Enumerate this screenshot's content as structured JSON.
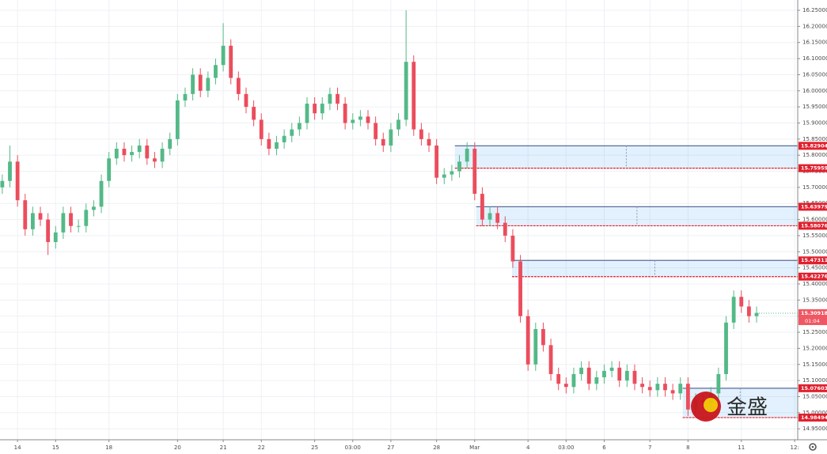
{
  "chart_data": {
    "type": "candlestick",
    "up_color": "#53b987",
    "down_color": "#eb4d5c",
    "grid": true,
    "open": [
      15.7,
      15.72,
      15.78,
      15.66,
      15.57,
      15.62,
      15.6,
      15.53,
      15.56,
      15.62,
      15.58,
      15.58,
      15.63,
      15.64,
      15.72,
      15.79,
      15.82,
      15.8,
      15.81,
      15.83,
      15.79,
      15.78,
      15.82,
      15.85,
      15.97,
      15.99,
      16.05,
      16.0,
      16.04,
      16.08,
      16.14,
      16.04,
      15.99,
      15.95,
      15.91,
      15.85,
      15.82,
      15.84,
      15.86,
      15.88,
      15.9,
      15.96,
      15.93,
      15.96,
      15.99,
      15.96,
      15.9,
      15.91,
      15.92,
      15.9,
      15.85,
      15.83,
      15.88,
      15.91,
      16.09,
      15.88,
      15.85,
      15.83,
      15.73,
      15.74,
      15.75,
      15.78,
      15.82,
      15.68,
      15.6,
      15.62,
      15.59,
      15.55,
      15.47,
      15.3,
      15.15,
      15.26,
      15.21,
      15.12,
      15.09,
      15.08,
      15.12,
      15.14,
      15.09,
      15.11,
      15.13,
      15.14,
      15.1,
      15.13,
      15.09,
      15.08,
      15.07,
      15.09,
      15.07,
      15.06,
      15.09,
      15.01,
      15.04,
      15.03,
      15.06,
      15.12,
      15.28,
      15.36,
      15.33,
      15.3
    ],
    "high": [
      15.74,
      15.83,
      15.8,
      15.68,
      15.64,
      15.64,
      15.62,
      15.58,
      15.64,
      15.64,
      15.6,
      15.65,
      15.66,
      15.74,
      15.81,
      15.84,
      15.84,
      15.83,
      15.85,
      15.85,
      15.81,
      15.84,
      15.87,
      15.99,
      16.01,
      16.07,
      16.07,
      16.06,
      16.1,
      16.21,
      16.16,
      16.06,
      16.01,
      15.97,
      15.93,
      15.87,
      15.86,
      15.88,
      15.9,
      15.92,
      15.98,
      15.98,
      15.98,
      16.01,
      16.01,
      15.98,
      15.93,
      15.94,
      15.94,
      15.92,
      15.87,
      15.9,
      15.93,
      16.25,
      16.11,
      15.9,
      15.87,
      15.85,
      15.76,
      15.77,
      15.8,
      15.84,
      15.84,
      15.7,
      15.64,
      15.64,
      15.61,
      15.57,
      15.49,
      15.32,
      15.28,
      15.28,
      15.23,
      15.14,
      15.11,
      15.14,
      15.16,
      15.16,
      15.13,
      15.15,
      15.16,
      15.16,
      15.15,
      15.15,
      15.11,
      15.1,
      15.11,
      15.11,
      15.09,
      15.11,
      15.11,
      15.06,
      15.06,
      15.08,
      15.14,
      15.3,
      15.38,
      15.38,
      15.35,
      15.33
    ],
    "low": [
      15.68,
      15.7,
      15.64,
      15.55,
      15.55,
      15.58,
      15.49,
      15.51,
      15.54,
      15.56,
      15.56,
      15.56,
      15.61,
      15.62,
      15.7,
      15.77,
      15.78,
      15.78,
      15.79,
      15.77,
      15.76,
      15.76,
      15.8,
      15.83,
      15.95,
      15.97,
      15.98,
      15.98,
      16.02,
      16.06,
      16.02,
      15.97,
      15.93,
      15.89,
      15.83,
      15.8,
      15.8,
      15.82,
      15.84,
      15.86,
      15.88,
      15.91,
      15.91,
      15.94,
      15.94,
      15.88,
      15.88,
      15.89,
      15.88,
      15.83,
      15.81,
      15.81,
      15.86,
      15.89,
      15.86,
      15.83,
      15.81,
      15.71,
      15.71,
      15.72,
      15.73,
      15.76,
      15.66,
      15.58,
      15.58,
      15.57,
      15.53,
      15.45,
      15.28,
      15.13,
      15.13,
      15.19,
      15.1,
      15.07,
      15.06,
      15.06,
      15.1,
      15.07,
      15.07,
      15.09,
      15.11,
      15.08,
      15.08,
      15.07,
      15.06,
      15.05,
      15.05,
      15.05,
      15.04,
      15.04,
      14.99,
      14.99,
      15.01,
      15.01,
      15.04,
      15.1,
      15.26,
      15.31,
      15.28,
      15.28
    ],
    "close": [
      15.72,
      15.78,
      15.66,
      15.57,
      15.62,
      15.6,
      15.53,
      15.56,
      15.62,
      15.58,
      15.58,
      15.63,
      15.64,
      15.72,
      15.79,
      15.82,
      15.8,
      15.81,
      15.83,
      15.79,
      15.78,
      15.82,
      15.85,
      15.97,
      15.99,
      16.05,
      16.0,
      16.04,
      16.08,
      16.14,
      16.04,
      15.99,
      15.95,
      15.91,
      15.85,
      15.82,
      15.84,
      15.86,
      15.88,
      15.9,
      15.96,
      15.93,
      15.96,
      15.99,
      15.96,
      15.9,
      15.91,
      15.92,
      15.9,
      15.85,
      15.83,
      15.88,
      15.91,
      16.09,
      15.88,
      15.85,
      15.83,
      15.73,
      15.74,
      15.75,
      15.78,
      15.82,
      15.68,
      15.6,
      15.62,
      15.59,
      15.55,
      15.47,
      15.3,
      15.15,
      15.26,
      15.21,
      15.12,
      15.09,
      15.08,
      15.12,
      15.14,
      15.09,
      15.11,
      15.13,
      15.14,
      15.1,
      15.13,
      15.09,
      15.08,
      15.07,
      15.09,
      15.07,
      15.06,
      15.09,
      15.01,
      15.04,
      15.03,
      15.06,
      15.12,
      15.28,
      15.36,
      15.33,
      15.3,
      15.31
    ],
    "xlim": [
      -0.3,
      104.4
    ],
    "xticks": [
      {
        "value": 2,
        "label": "14"
      },
      {
        "value": 7,
        "label": "15"
      },
      {
        "value": 14,
        "label": "18"
      },
      {
        "value": 23,
        "label": "20"
      },
      {
        "value": 29,
        "label": "21"
      },
      {
        "value": 34,
        "label": "22"
      },
      {
        "value": 41,
        "label": "25"
      },
      {
        "value": 46,
        "label": "03:00"
      },
      {
        "value": 51,
        "label": "27"
      },
      {
        "value": 57,
        "label": "28"
      },
      {
        "value": 62,
        "label": "Mar"
      },
      {
        "value": 69,
        "label": "4"
      },
      {
        "value": 74,
        "label": "03:00"
      },
      {
        "value": 79,
        "label": "6"
      },
      {
        "value": 85,
        "label": "7"
      },
      {
        "value": 90,
        "label": "8"
      },
      {
        "value": 97,
        "label": "11"
      },
      {
        "value": 104,
        "label": "12:"
      }
    ],
    "ylim": [
      14.916,
      16.282
    ],
    "yticks": [
      {
        "value": 14.95,
        "label": "14.95000"
      },
      {
        "value": 15.0,
        "label": "15.00000"
      },
      {
        "value": 15.05,
        "label": "15.05000"
      },
      {
        "value": 15.1,
        "label": "15.10000"
      },
      {
        "value": 15.15,
        "label": "15.15000"
      },
      {
        "value": 15.2,
        "label": "15.20000"
      },
      {
        "value": 15.25,
        "label": "15.25000"
      },
      {
        "value": 15.3,
        "label": "15.30000"
      },
      {
        "value": 15.35,
        "label": "15.35000"
      },
      {
        "value": 15.4,
        "label": "15.40000"
      },
      {
        "value": 15.45,
        "label": "15.45000"
      },
      {
        "value": 15.5,
        "label": "15.50000"
      },
      {
        "value": 15.55,
        "label": "15.55000"
      },
      {
        "value": 15.6,
        "label": "15.60000"
      },
      {
        "value": 15.65,
        "label": "15.65000"
      },
      {
        "value": 15.7,
        "label": "15.70000"
      },
      {
        "value": 15.75,
        "label": "15.75000"
      },
      {
        "value": 15.8,
        "label": "15.80000"
      },
      {
        "value": 15.85,
        "label": "15.85000"
      },
      {
        "value": 15.9,
        "label": "15.90000"
      },
      {
        "value": 15.95,
        "label": "15.95000"
      },
      {
        "value": 16.0,
        "label": "16.00000"
      },
      {
        "value": 16.05,
        "label": "16.05000"
      },
      {
        "value": 16.1,
        "label": "16.10000"
      },
      {
        "value": 16.15,
        "label": "16.15000"
      },
      {
        "value": 16.2,
        "label": "16.20000"
      },
      {
        "value": 16.25,
        "label": "16.25000"
      }
    ],
    "zones": [
      {
        "start": 59.4,
        "top": 15.82904,
        "bottom": 15.75959
      },
      {
        "start": 62.2,
        "top": 15.63979,
        "bottom": 15.58076
      },
      {
        "start": 66.9,
        "top": 15.47311,
        "bottom": 15.42276
      },
      {
        "start": 89.3,
        "top": 15.07603,
        "bottom": 14.98494
      }
    ],
    "last_price": 15.30918,
    "countdown": "01:04",
    "watermark": "金盛"
  }
}
